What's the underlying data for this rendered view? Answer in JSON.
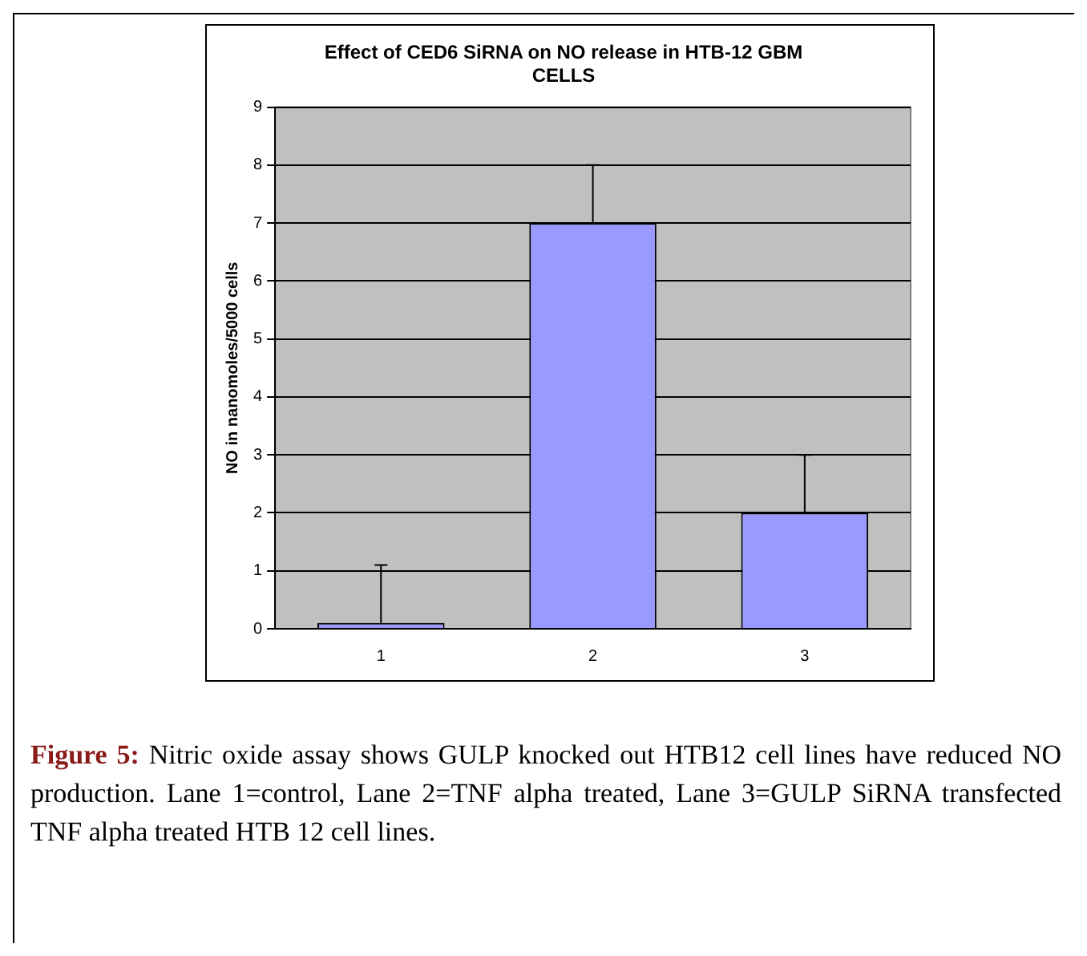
{
  "chart_data": {
    "type": "bar",
    "title": "Effect of CED6 SiRNA on NO release in HTB-12 GBM CELLS",
    "ylabel": "NO in nanomoles/5000 cells",
    "categories": [
      "1",
      "2",
      "3"
    ],
    "values": [
      0.1,
      7,
      2
    ],
    "errors": [
      [
        0.1,
        1.1
      ],
      [
        7,
        8
      ],
      [
        2,
        3
      ]
    ],
    "color": "#9999ff",
    "ylim": [
      0,
      9
    ],
    "yticks": [
      0,
      1,
      2,
      3,
      4,
      5,
      6,
      7,
      8,
      9
    ],
    "grid": "y",
    "annotations": [
      "Figure 5: Nitric oxide assay shows GULP knocked out HTB12 cell lines have reduced NO production. Lane 1=control, Lane 2=TNF alpha treated, Lane 3=GULP SiRNA transfected TNF alpha treated HTB 12 cell lines."
    ]
  }
}
